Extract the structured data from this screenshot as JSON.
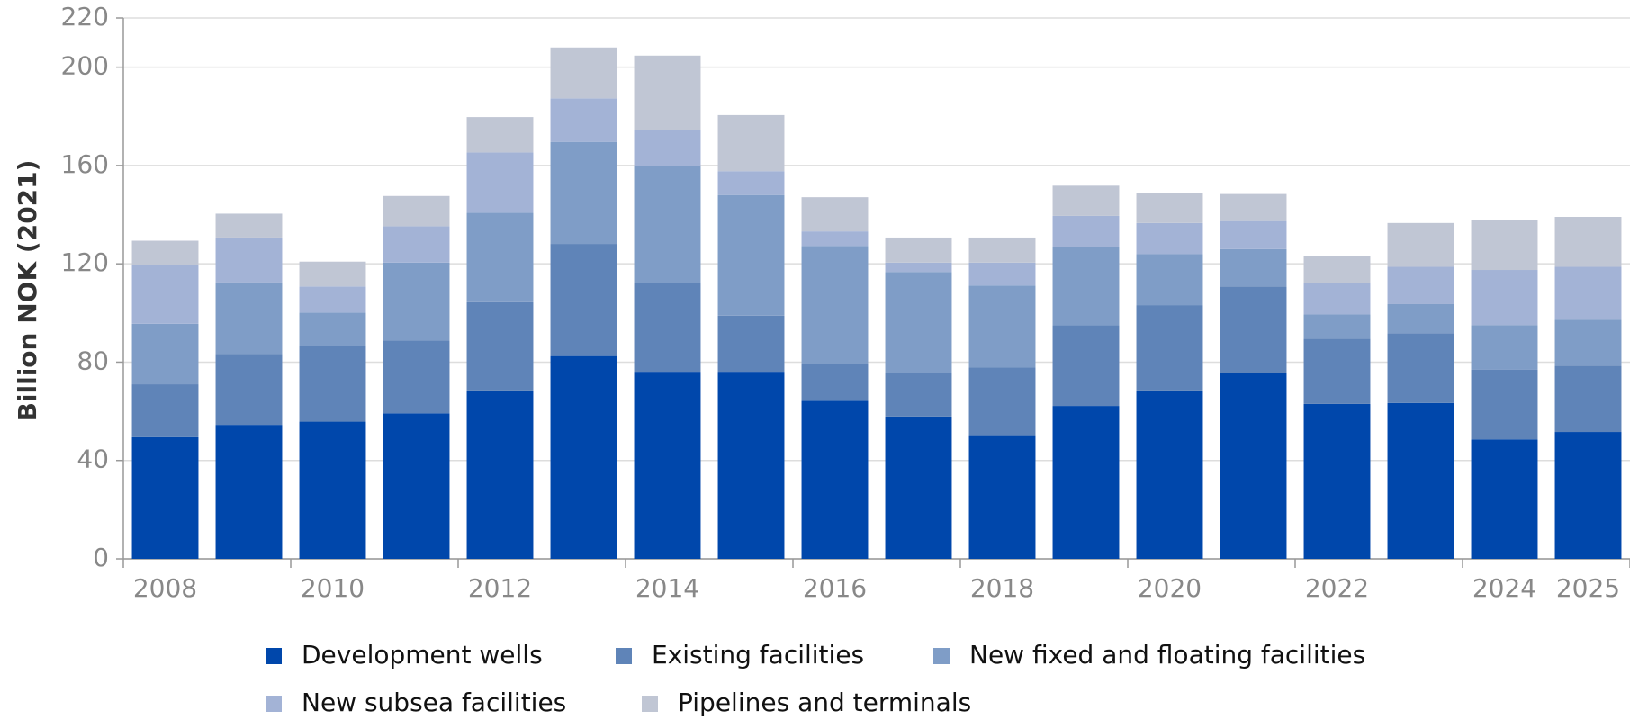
{
  "chart_data": {
    "type": "stacked_bar",
    "y_label": "Billion NOK (2021)",
    "categories": [
      "2008",
      null,
      "2010",
      null,
      "2012",
      null,
      "2014",
      null,
      "2016",
      null,
      "2018",
      null,
      "2020",
      null,
      "2022",
      null,
      "2024",
      "2025"
    ],
    "series": [
      {
        "name": "Development wells",
        "color": "#0047ab",
        "values": [
          49.5,
          54.5,
          55.8,
          59.2,
          68.5,
          82.5,
          76.1,
          76.1,
          64.3,
          57.9,
          50.3,
          62.2,
          68.5,
          75.7,
          63,
          63.4,
          48.6,
          51.6
        ]
      },
      {
        "name": "Existing facilities",
        "color": "#5f84b8",
        "values": [
          21.5,
          28.8,
          30.9,
          29.6,
          35.9,
          45.6,
          36,
          22.8,
          14.8,
          17.8,
          27.5,
          32.9,
          34.7,
          35.1,
          26.6,
          28.4,
          28.4,
          27
        ]
      },
      {
        "name": "New fixed and floating facilities",
        "color": "#7f9dc7",
        "values": [
          24.6,
          29.2,
          13.5,
          31.7,
          36.4,
          41.5,
          47.7,
          49.1,
          48.2,
          41,
          33.4,
          31.7,
          20.7,
          15.2,
          9.8,
          11.8,
          18.1,
          18.7
        ]
      },
      {
        "name": "New subsea facilities",
        "color": "#a3b3d6",
        "values": [
          24.1,
          18.2,
          10.6,
          14.8,
          24.5,
          17.7,
          14.8,
          9.7,
          5.9,
          3.8,
          9.3,
          12.7,
          12.7,
          11.4,
          12.7,
          15.2,
          22.4,
          21.5
        ]
      },
      {
        "name": "Pipelines and terminals",
        "color": "#c0c6d4",
        "values": [
          9.7,
          9.7,
          10.1,
          12.3,
          14.4,
          20.7,
          30.1,
          22.8,
          13.9,
          10.2,
          10.2,
          12.3,
          12.2,
          11,
          10.9,
          17.8,
          20.3,
          20.3
        ]
      }
    ],
    "ylim": [
      0,
      220
    ],
    "yticks": [
      0,
      40,
      80,
      120,
      160,
      200,
      220
    ],
    "grid": true
  }
}
